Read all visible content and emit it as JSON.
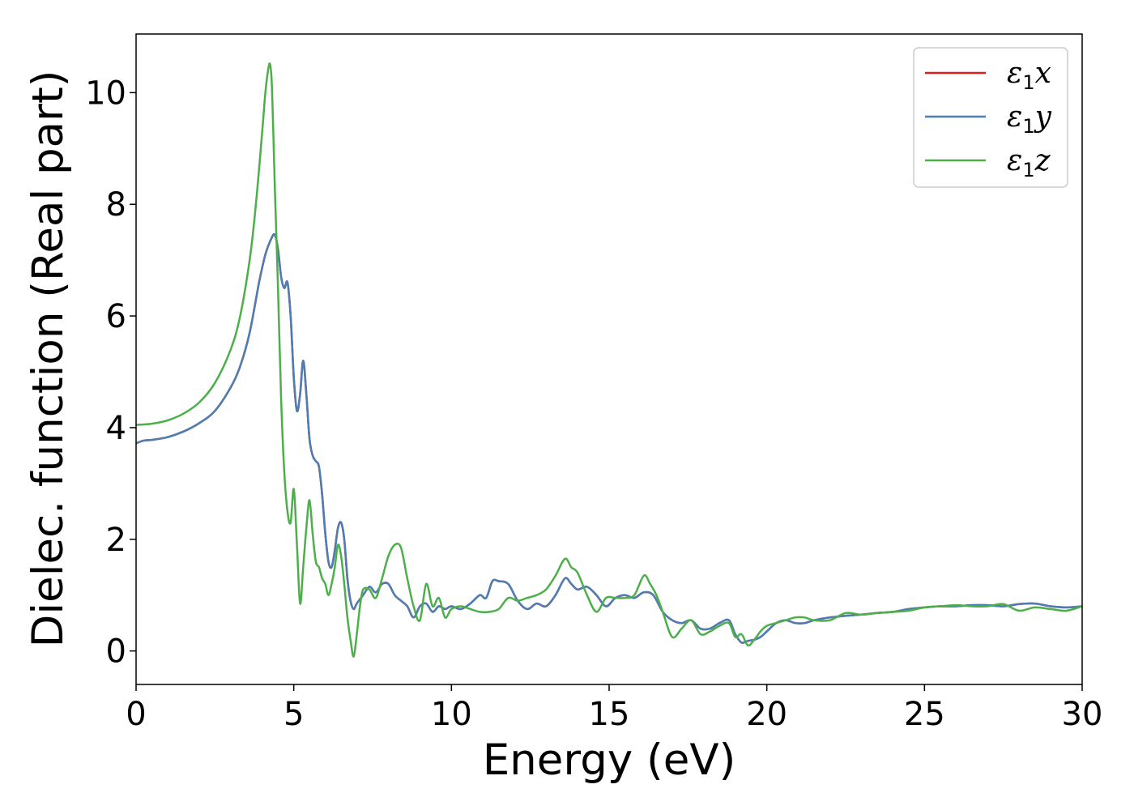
{
  "chart_data": {
    "type": "line",
    "xlabel": "Energy (eV)",
    "ylabel": "Dielec. function (Real part)",
    "xlim": [
      0,
      30
    ],
    "ylim": [
      -0.6,
      11.05
    ],
    "xticks": [
      0,
      5,
      10,
      15,
      20,
      25,
      30
    ],
    "yticks": [
      0,
      2,
      4,
      6,
      8,
      10
    ],
    "grid": false,
    "legend_position": "top-right",
    "series": [
      {
        "name": "ε1x",
        "legend_symbol": "ε",
        "legend_sub": "1",
        "legend_axis": "x",
        "color": "#e41a1c",
        "x": [
          0,
          0.25,
          0.5,
          1,
          1.5,
          2,
          2.5,
          3,
          3.3,
          3.6,
          3.9,
          4.1,
          4.3,
          4.4,
          4.5,
          4.6,
          4.7,
          4.8,
          4.9,
          5.0,
          5.1,
          5.2,
          5.3,
          5.4,
          5.5,
          5.6,
          5.7,
          5.8,
          5.9,
          6.0,
          6.1,
          6.2,
          6.3,
          6.4,
          6.5,
          6.6,
          6.7,
          6.8,
          6.9,
          7.0,
          7.2,
          7.4,
          7.6,
          7.8,
          8.0,
          8.2,
          8.4,
          8.6,
          8.8,
          9.0,
          9.2,
          9.4,
          9.6,
          9.8,
          10.0,
          10.3,
          10.6,
          10.9,
          11.1,
          11.3,
          11.5,
          11.8,
          12.1,
          12.4,
          12.7,
          13.0,
          13.3,
          13.6,
          13.8,
          14.0,
          14.3,
          14.6,
          14.9,
          15.2,
          15.5,
          15.8,
          16.1,
          16.4,
          16.7,
          17.0,
          17.3,
          17.6,
          17.9,
          18.2,
          18.5,
          18.8,
          19.0,
          19.2,
          19.4,
          19.6,
          19.8,
          20.0,
          20.3,
          20.6,
          20.9,
          21.2,
          21.5,
          22.0,
          22.5,
          23.0,
          23.5,
          24.0,
          24.5,
          25.0,
          25.5,
          26.0,
          26.5,
          27.0,
          27.5,
          28.0,
          28.5,
          29.0,
          29.5,
          30.0
        ],
        "y": [
          3.72,
          3.77,
          3.78,
          3.83,
          3.93,
          4.08,
          4.3,
          4.72,
          5.1,
          5.7,
          6.6,
          7.1,
          7.4,
          7.45,
          7.2,
          6.7,
          6.5,
          6.6,
          6.0,
          4.9,
          4.3,
          4.6,
          5.2,
          4.6,
          3.8,
          3.5,
          3.4,
          3.3,
          2.8,
          2.1,
          1.6,
          1.5,
          1.8,
          2.2,
          2.3,
          2.0,
          1.3,
          0.9,
          0.75,
          0.85,
          1.0,
          1.15,
          1.05,
          1.2,
          1.2,
          1.0,
          0.9,
          0.8,
          0.6,
          0.8,
          0.85,
          0.7,
          0.8,
          0.75,
          0.8,
          0.75,
          0.85,
          1.0,
          0.95,
          1.25,
          1.25,
          1.2,
          0.9,
          0.75,
          0.85,
          0.8,
          1.0,
          1.3,
          1.2,
          1.1,
          1.15,
          1.0,
          0.8,
          0.95,
          1.0,
          0.95,
          1.05,
          1.0,
          0.7,
          0.55,
          0.5,
          0.55,
          0.4,
          0.4,
          0.5,
          0.55,
          0.3,
          0.15,
          0.18,
          0.2,
          0.25,
          0.35,
          0.5,
          0.55,
          0.5,
          0.5,
          0.55,
          0.6,
          0.63,
          0.65,
          0.68,
          0.7,
          0.75,
          0.78,
          0.8,
          0.8,
          0.82,
          0.82,
          0.8,
          0.84,
          0.85,
          0.8,
          0.78,
          0.8
        ]
      },
      {
        "name": "ε1y",
        "legend_symbol": "ε",
        "legend_sub": "1",
        "legend_axis": "y",
        "color": "#4a7eb5",
        "x": [
          0,
          0.25,
          0.5,
          1,
          1.5,
          2,
          2.5,
          3,
          3.3,
          3.6,
          3.9,
          4.1,
          4.3,
          4.4,
          4.5,
          4.6,
          4.7,
          4.8,
          4.9,
          5.0,
          5.1,
          5.2,
          5.3,
          5.4,
          5.5,
          5.6,
          5.7,
          5.8,
          5.9,
          6.0,
          6.1,
          6.2,
          6.3,
          6.4,
          6.5,
          6.6,
          6.7,
          6.8,
          6.9,
          7.0,
          7.2,
          7.4,
          7.6,
          7.8,
          8.0,
          8.2,
          8.4,
          8.6,
          8.8,
          9.0,
          9.2,
          9.4,
          9.6,
          9.8,
          10.0,
          10.3,
          10.6,
          10.9,
          11.1,
          11.3,
          11.5,
          11.8,
          12.1,
          12.4,
          12.7,
          13.0,
          13.3,
          13.6,
          13.8,
          14.0,
          14.3,
          14.6,
          14.9,
          15.2,
          15.5,
          15.8,
          16.1,
          16.4,
          16.7,
          17.0,
          17.3,
          17.6,
          17.9,
          18.2,
          18.5,
          18.8,
          19.0,
          19.2,
          19.4,
          19.6,
          19.8,
          20.0,
          20.3,
          20.6,
          20.9,
          21.2,
          21.5,
          22.0,
          22.5,
          23.0,
          23.5,
          24.0,
          24.5,
          25.0,
          25.5,
          26.0,
          26.5,
          27.0,
          27.5,
          28.0,
          28.5,
          29.0,
          29.5,
          30.0
        ],
        "y": [
          3.72,
          3.77,
          3.78,
          3.83,
          3.93,
          4.08,
          4.3,
          4.72,
          5.1,
          5.7,
          6.6,
          7.1,
          7.4,
          7.45,
          7.2,
          6.7,
          6.5,
          6.6,
          6.0,
          4.9,
          4.3,
          4.6,
          5.2,
          4.6,
          3.8,
          3.5,
          3.4,
          3.3,
          2.8,
          2.1,
          1.6,
          1.5,
          1.8,
          2.2,
          2.3,
          2.0,
          1.3,
          0.9,
          0.75,
          0.85,
          1.0,
          1.15,
          1.05,
          1.2,
          1.2,
          1.0,
          0.9,
          0.8,
          0.6,
          0.8,
          0.85,
          0.7,
          0.8,
          0.75,
          0.8,
          0.75,
          0.85,
          1.0,
          0.95,
          1.25,
          1.25,
          1.2,
          0.9,
          0.75,
          0.85,
          0.8,
          1.0,
          1.3,
          1.2,
          1.1,
          1.15,
          1.0,
          0.8,
          0.95,
          1.0,
          0.95,
          1.05,
          1.0,
          0.7,
          0.55,
          0.5,
          0.55,
          0.4,
          0.4,
          0.5,
          0.55,
          0.3,
          0.15,
          0.18,
          0.2,
          0.25,
          0.35,
          0.5,
          0.55,
          0.5,
          0.5,
          0.55,
          0.6,
          0.63,
          0.65,
          0.68,
          0.7,
          0.75,
          0.78,
          0.8,
          0.8,
          0.82,
          0.82,
          0.8,
          0.84,
          0.85,
          0.8,
          0.78,
          0.8
        ]
      },
      {
        "name": "ε1z",
        "legend_symbol": "ε",
        "legend_sub": "1",
        "legend_axis": "z",
        "color": "#4daf4a",
        "x": [
          0,
          0.5,
          1,
          1.5,
          2,
          2.5,
          3,
          3.3,
          3.6,
          3.8,
          4.0,
          4.1,
          4.2,
          4.25,
          4.3,
          4.35,
          4.4,
          4.5,
          4.6,
          4.7,
          4.8,
          4.9,
          5.0,
          5.1,
          5.2,
          5.3,
          5.4,
          5.5,
          5.6,
          5.7,
          5.8,
          5.9,
          6.0,
          6.1,
          6.2,
          6.3,
          6.4,
          6.5,
          6.6,
          6.7,
          6.8,
          6.9,
          7.0,
          7.1,
          7.2,
          7.4,
          7.6,
          7.8,
          8.0,
          8.2,
          8.4,
          8.6,
          8.8,
          9.0,
          9.2,
          9.4,
          9.6,
          9.8,
          10.0,
          10.3,
          10.6,
          10.9,
          11.2,
          11.5,
          11.8,
          12.1,
          12.4,
          12.7,
          13.0,
          13.3,
          13.6,
          13.8,
          14.0,
          14.3,
          14.6,
          14.9,
          15.2,
          15.5,
          15.8,
          16.1,
          16.3,
          16.5,
          16.7,
          17.0,
          17.3,
          17.6,
          17.9,
          18.2,
          18.5,
          18.8,
          19.0,
          19.2,
          19.4,
          19.6,
          19.8,
          20.0,
          20.3,
          20.6,
          20.9,
          21.2,
          21.5,
          22.0,
          22.5,
          23.0,
          23.5,
          24.0,
          24.5,
          25.0,
          25.5,
          26.0,
          26.5,
          27.0,
          27.5,
          28.0,
          28.5,
          29.0,
          29.5,
          30.0
        ],
        "y": [
          4.05,
          4.07,
          4.13,
          4.25,
          4.45,
          4.8,
          5.4,
          6.0,
          7.0,
          8.0,
          9.3,
          10.0,
          10.45,
          10.5,
          10.2,
          9.3,
          8.3,
          6.5,
          4.5,
          3.2,
          2.5,
          2.3,
          2.9,
          1.9,
          0.85,
          1.5,
          2.2,
          2.7,
          2.1,
          1.6,
          1.5,
          1.3,
          1.2,
          1.0,
          1.2,
          1.5,
          1.9,
          1.7,
          1.2,
          0.6,
          0.2,
          -0.1,
          0.3,
          0.8,
          1.1,
          1.1,
          0.95,
          1.3,
          1.7,
          1.9,
          1.85,
          1.3,
          0.8,
          0.55,
          1.2,
          0.8,
          0.95,
          0.6,
          0.75,
          0.8,
          0.75,
          0.7,
          0.7,
          0.75,
          0.95,
          0.9,
          0.95,
          1.0,
          1.1,
          1.35,
          1.65,
          1.5,
          1.4,
          1.0,
          0.7,
          0.95,
          0.95,
          0.95,
          1.0,
          1.35,
          1.2,
          1.0,
          0.7,
          0.25,
          0.4,
          0.55,
          0.3,
          0.35,
          0.45,
          0.5,
          0.25,
          0.3,
          0.1,
          0.2,
          0.35,
          0.45,
          0.5,
          0.55,
          0.6,
          0.6,
          0.55,
          0.55,
          0.68,
          0.65,
          0.68,
          0.7,
          0.72,
          0.78,
          0.8,
          0.82,
          0.8,
          0.8,
          0.84,
          0.72,
          0.78,
          0.75,
          0.72,
          0.8
        ]
      }
    ]
  }
}
